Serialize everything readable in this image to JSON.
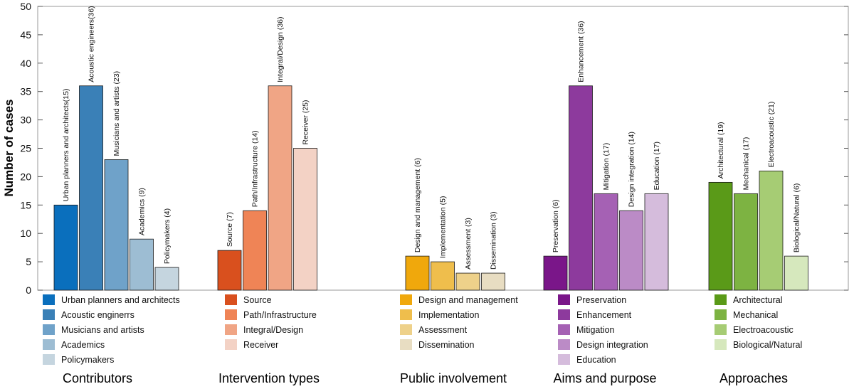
{
  "chart_data": {
    "type": "bar",
    "ylabel": "Number of cases",
    "ylim": [
      0,
      50
    ],
    "yticks": [
      0,
      5,
      10,
      15,
      20,
      25,
      30,
      35,
      40,
      45,
      50
    ],
    "groups": [
      {
        "title": "Contributors",
        "bars": [
          {
            "legend": "Urban planners and architects",
            "label": "Urban planners and architects(15)",
            "value": 15,
            "color": "#0a6fbd"
          },
          {
            "legend": "Acoustic enginerrs",
            "label": "Acoustic engineers(36)",
            "value": 36,
            "color": "#3a80b7"
          },
          {
            "legend": "Musicians and artists",
            "label": "Musicians and artists (23)",
            "value": 23,
            "color": "#6fa2c9"
          },
          {
            "legend": "Academics",
            "label": "Academics (9)",
            "value": 9,
            "color": "#9dbdd3"
          },
          {
            "legend": "Policymakers",
            "label": "Policymakers (4)",
            "value": 4,
            "color": "#c5d5df"
          }
        ]
      },
      {
        "title": "Intervention types",
        "bars": [
          {
            "legend": "Source",
            "label": "Source (7)",
            "value": 7,
            "color": "#d9501e"
          },
          {
            "legend": "Path/Infrastructure",
            "label": "Path/Infrastructure (14)",
            "value": 14,
            "color": "#ef8456"
          },
          {
            "legend": "Integral/Design",
            "label": "Integral/Design (36)",
            "value": 36,
            "color": "#f0a585"
          },
          {
            "legend": "Receiver",
            "label": "Receiver (25)",
            "value": 25,
            "color": "#f3d2c5"
          }
        ]
      },
      {
        "title": "Public involvement",
        "bars": [
          {
            "legend": "Design and management",
            "label": "Design and management (6)",
            "value": 6,
            "color": "#f0a80c"
          },
          {
            "legend": "Implementation",
            "label": "Implementation (5)",
            "value": 5,
            "color": "#efbe4c"
          },
          {
            "legend": "Assessment",
            "label": "Assessment (3)",
            "value": 3,
            "color": "#eed18a"
          },
          {
            "legend": "Dissemination",
            "label": "Dissemination (3)",
            "value": 3,
            "color": "#e8ddc2"
          }
        ]
      },
      {
        "title": "Aims and purpose",
        "bars": [
          {
            "legend": "Preservation",
            "label": "Preservation (6)",
            "value": 6,
            "color": "#7a1689"
          },
          {
            "legend": "Enhancement",
            "label": "Enhancement (36)",
            "value": 36,
            "color": "#8d3a9d"
          },
          {
            "legend": "Mitigation",
            "label": "Mitigation (17)",
            "value": 17,
            "color": "#a561b4"
          },
          {
            "legend": "Design integration",
            "label": "Design integration (14)",
            "value": 14,
            "color": "#bb8bc6"
          },
          {
            "legend": "Education",
            "label": "Education (17)",
            "value": 17,
            "color": "#d5bcdc"
          }
        ]
      },
      {
        "title": "Approaches",
        "bars": [
          {
            "legend": "Architectural",
            "label": "Architectural (19)",
            "value": 19,
            "color": "#5a9a18"
          },
          {
            "legend": "Mechanical",
            "label": "Mechanical (17)",
            "value": 17,
            "color": "#7db342"
          },
          {
            "legend": "Electroacoustic",
            "label": "Electroacoustic (21)",
            "value": 21,
            "color": "#a6cc74"
          },
          {
            "legend": "Biological/Natural",
            "label": "Biological/Natural (6)",
            "value": 6,
            "color": "#d6e8bd"
          }
        ]
      }
    ]
  }
}
